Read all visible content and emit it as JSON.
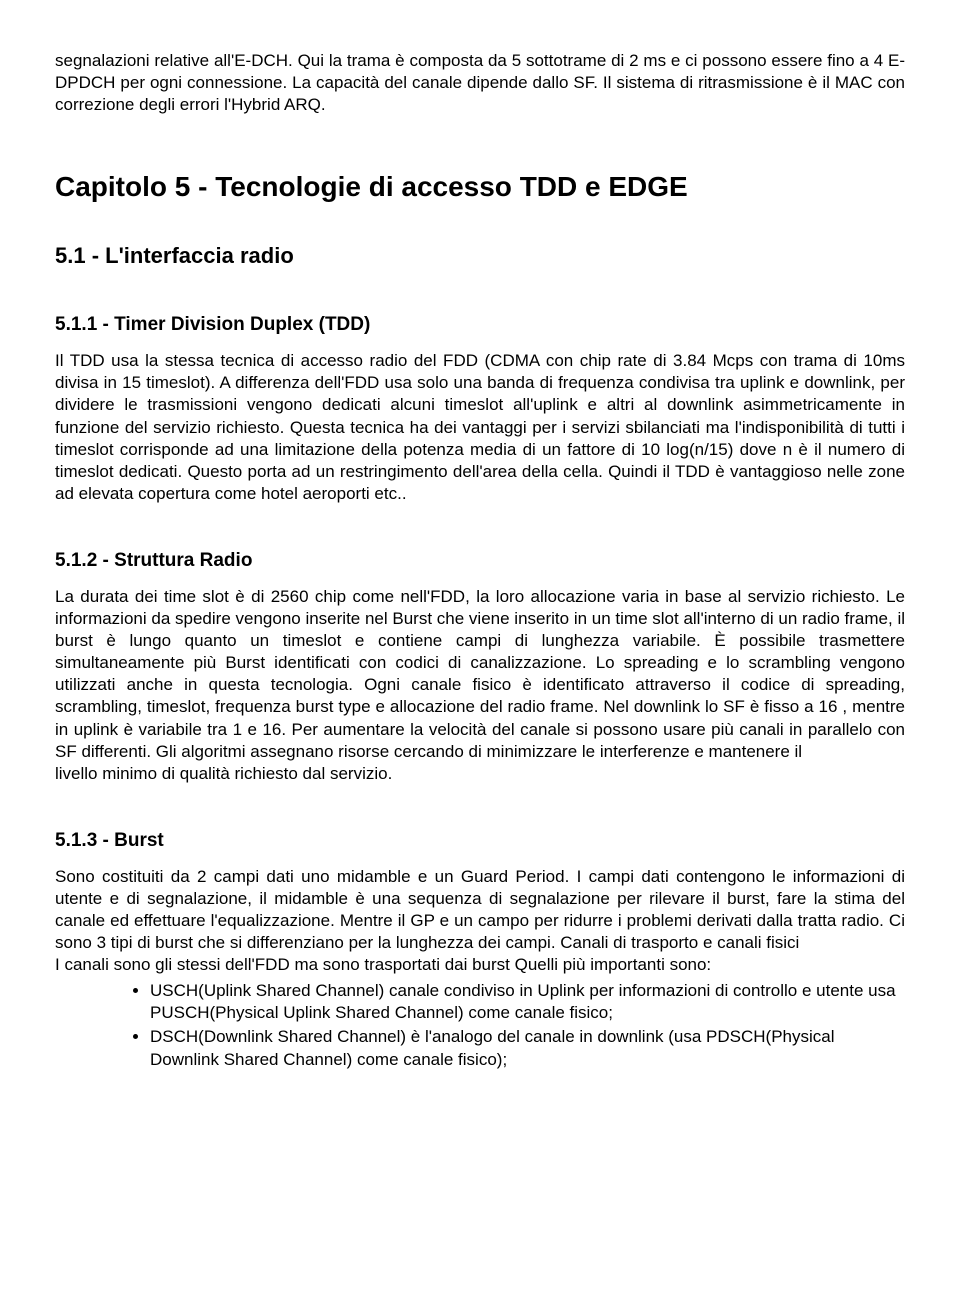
{
  "intro_para": "segnalazioni relative all'E-DCH. Qui la trama è composta da 5 sottotrame di 2 ms e ci possono essere fino a 4 E-DPDCH per ogni connessione. La capacità del canale dipende dallo SF. Il sistema di ritrasmissione è il MAC con correzione degli errori l'Hybrid ARQ.",
  "chapter_title": "Capitolo 5 - Tecnologie di accesso TDD e EDGE",
  "sec51_title": "5.1 - L'interfaccia radio",
  "sec511_title": "5.1.1 - Timer Division Duplex (TDD)",
  "sec511_para": "Il TDD usa la stessa tecnica di accesso radio del FDD (CDMA con chip rate di 3.84 Mcps con trama di 10ms divisa in 15 timeslot). A differenza dell'FDD usa solo una banda di frequenza condivisa tra uplink e downlink, per dividere le trasmissioni vengono dedicati alcuni timeslot all'uplink e altri al downlink asimmetricamente in funzione del servizio richiesto. Questa tecnica ha dei vantaggi per i servizi sbilanciati ma l'indisponibilità di tutti i timeslot corrisponde ad una limitazione della potenza media di un fattore di 10 log(n/15) dove n è il numero di timeslot dedicati. Questo porta ad un restringimento dell'area della cella. Quindi il TDD è vantaggioso nelle zone ad elevata copertura come hotel aeroporti etc..",
  "sec512_title": "5.1.2 - Struttura Radio",
  "sec512_para": "La durata dei time slot è di 2560 chip come nell'FDD, la loro allocazione varia in base al servizio richiesto. Le informazioni da spedire vengono inserite nel Burst che viene inserito in un time slot all'interno di un radio frame, il burst è lungo quanto un timeslot e contiene campi di lunghezza variabile. È possibile trasmettere simultaneamente più Burst identificati con codici di canalizzazione. Lo spreading e lo scrambling vengono utilizzati anche in questa tecnologia. Ogni canale fisico è identificato attraverso il codice di spreading, scrambling, timeslot, frequenza burst type e allocazione del radio frame. Nel downlink lo SF è fisso a 16 , mentre in uplink è variabile tra 1 e 16. Per aumentare la velocità del canale si possono usare più canali in parallelo con SF differenti. Gli algoritmi assegnano risorse cercando di minimizzare le interferenze e mantenere il",
  "sec512_para_tail": "livello minimo di qualità richiesto dal servizio.",
  "sec513_title": "5.1.3 - Burst",
  "sec513_para1": "Sono costituiti da 2 campi dati uno midamble e un Guard Period. I campi dati contengono le informazioni di utente e di segnalazione, il midamble è una sequenza di segnalazione per rilevare il burst, fare la stima del canale ed effettuare l'equalizzazione. Mentre il GP e un campo per ridurre i problemi derivati dalla tratta radio. Ci sono 3 tipi di burst che si differenziano per la lunghezza dei campi. Canali di trasporto e canali fisici",
  "sec513_para2": "I canali sono gli stessi dell'FDD ma sono trasportati dai burst Quelli più importanti sono:",
  "bullets": [
    "USCH(Uplink Shared Channel) canale condiviso in Uplink per informazioni di controllo e utente usa PUSCH(Physical Uplink Shared Channel) come canale fisico;",
    "DSCH(Downlink Shared Channel) è l'analogo del canale in downlink (usa PDSCH(Physical Downlink Shared Channel) come canale fisico);"
  ]
}
